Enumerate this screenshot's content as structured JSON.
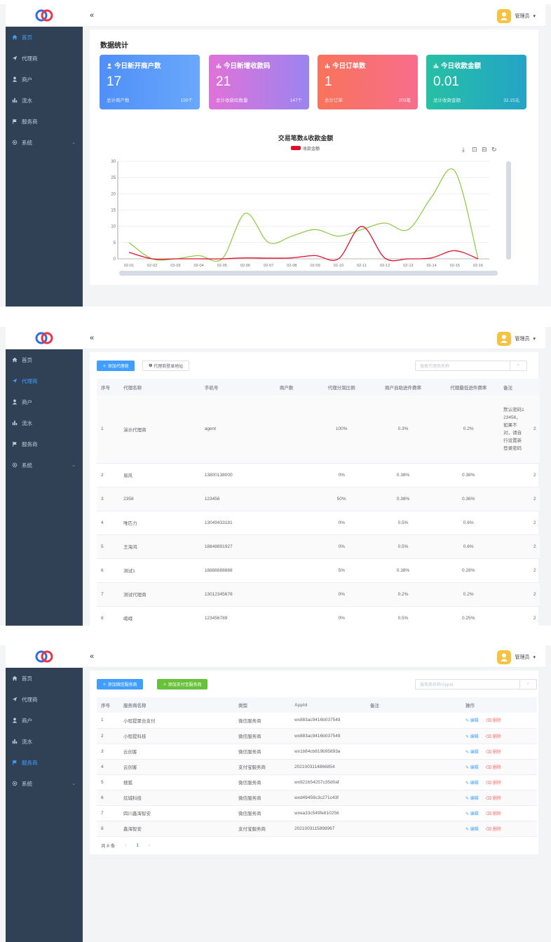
{
  "app": {
    "user_name": "管理员",
    "dropdown_icon": "caret-down-icon",
    "collapse_icon": "double-chevron-left-icon"
  },
  "panels": [
    {
      "sidebar": [
        {
          "icon": "home-icon",
          "label": "首页",
          "active": true
        },
        {
          "icon": "send-icon",
          "label": "代理商"
        },
        {
          "icon": "user-icon",
          "label": "商户"
        },
        {
          "icon": "bar-chart-icon",
          "label": "流水"
        },
        {
          "icon": "flag-icon",
          "label": "服务商"
        },
        {
          "icon": "gear-icon",
          "label": "系统",
          "expandable": true
        }
      ]
    },
    {
      "sidebar": [
        {
          "icon": "home-icon",
          "label": "首页"
        },
        {
          "icon": "send-icon",
          "label": "代理商",
          "active": true
        },
        {
          "icon": "user-icon",
          "label": "商户"
        },
        {
          "icon": "bar-chart-icon",
          "label": "流水"
        },
        {
          "icon": "flag-icon",
          "label": "服务商"
        },
        {
          "icon": "gear-icon",
          "label": "系统",
          "expandable": true
        }
      ]
    },
    {
      "sidebar": [
        {
          "icon": "home-icon",
          "label": "首页"
        },
        {
          "icon": "send-icon",
          "label": "代理商"
        },
        {
          "icon": "user-icon",
          "label": "商户"
        },
        {
          "icon": "bar-chart-icon",
          "label": "流水"
        },
        {
          "icon": "flag-icon",
          "label": "服务商",
          "active": true
        },
        {
          "icon": "gear-icon",
          "label": "系统",
          "expandable": true
        }
      ]
    }
  ],
  "dashboard": {
    "title": "数据统计",
    "cards": [
      {
        "icon": "user-icon",
        "title": "今日新开商户数",
        "value": "17",
        "footer_label": "总计商户数",
        "footer_value": "150个",
        "gradient": [
          "#4f8ff7",
          "#69a8fb"
        ]
      },
      {
        "icon": "bar-chart-icon",
        "title": "今日新增收款码",
        "value": "21",
        "footer_label": "总计收款码数量",
        "footer_value": "147个",
        "gradient": [
          "#e072d8",
          "#9b84f0"
        ]
      },
      {
        "icon": "bar-chart-icon",
        "title": "今日订单数",
        "value": "1",
        "footer_label": "总计订单",
        "footer_value": "203笔",
        "gradient": [
          "#f9735b",
          "#f76e8c"
        ]
      },
      {
        "icon": "bar-chart-icon",
        "title": "今日收款金额",
        "value": "0.01",
        "footer_label": "总计收款金额",
        "footer_value": "32.15元",
        "gradient": [
          "#27c0a4",
          "#23a3c8"
        ]
      }
    ],
    "toolbox_icons": [
      "download-icon",
      "zoom-icon",
      "zoom-reset-icon",
      "refresh-icon"
    ]
  },
  "chart_data": {
    "type": "line",
    "title": "交易笔数&收款金额",
    "legend": {
      "position": "top-center",
      "entries": [
        "收款金额"
      ]
    },
    "x": [
      "02-01",
      "02-02",
      "02-03",
      "02-04",
      "02-05",
      "02-06",
      "02-07",
      "02-08",
      "02-09",
      "02-10",
      "02-11",
      "02-12",
      "02-13",
      "02-14",
      "02-15",
      "02-16"
    ],
    "series": [
      {
        "values": [
          5,
          0,
          0,
          1,
          0,
          14,
          5,
          7,
          9,
          7,
          9,
          11,
          9,
          19,
          27,
          0
        ],
        "color": "#91cc4f"
      },
      {
        "name": "收款金额",
        "values": [
          2,
          0,
          0,
          0,
          0,
          0.3,
          0.2,
          0.3,
          1,
          0,
          10,
          0.2,
          0,
          0.3,
          2.5,
          0
        ],
        "color": "#e0102a"
      }
    ],
    "ylim": [
      0,
      30
    ],
    "yticks": [
      "0",
      "5",
      "10",
      "15",
      "20",
      "25",
      "30"
    ],
    "grid": true
  },
  "agents": {
    "add_button": "添加代理商",
    "login_button": "代理商登录地址",
    "search_placeholder": "搜索代理商名称",
    "columns": [
      "序号",
      "代理名称",
      "手机号",
      "商户数",
      "代理分润比例",
      "商户自助进件费率",
      "代理最低进件费率",
      "备注"
    ],
    "rows": [
      [
        "1",
        "演示代理商",
        "agent",
        "",
        "100%",
        "0.3%",
        "0.2%",
        "默认密码123456，如果不对，请自行设置新登录密码",
        "2"
      ],
      [
        "2",
        "易风",
        "13800138000",
        "",
        "0%",
        "0.38%",
        "0.38%",
        "",
        "2"
      ],
      [
        "3",
        "2358",
        "123456",
        "",
        "50%",
        "0.38%",
        "0.36%",
        "",
        "2"
      ],
      [
        "4",
        "唯匹力",
        "13049433181",
        "",
        "0%",
        "0.5%",
        "0.6%",
        "",
        "2"
      ],
      [
        "5",
        "王海鸿",
        "18848891927",
        "",
        "0%",
        "0.5%",
        "0.6%",
        "",
        "2"
      ],
      [
        "6",
        "测试1",
        "18888888888",
        "",
        "5%",
        "0.38%",
        "0.28%",
        "",
        "2"
      ],
      [
        "7",
        "测试代理商",
        "13012345678",
        "",
        "0%",
        "0.2%",
        "0.2%",
        "",
        "2"
      ],
      [
        "8",
        "峨峨",
        "123456789",
        "",
        "0%",
        "0.5%",
        "0.25%",
        "",
        "2"
      ]
    ]
  },
  "providers": {
    "add_wechat_button": "添加微信服务商",
    "add_alipay_button": "添加支付宝服务商",
    "search_placeholder": "服务商名称/AppId",
    "columns": [
      "序号",
      "服务商名称",
      "类型",
      "AppId",
      "备注",
      "操作"
    ],
    "edit_label": "编辑",
    "delete_label": "删除",
    "rows": [
      [
        "1",
        "小程提聚合支付",
        "微信服务商",
        "wx883ac9416b037549",
        ""
      ],
      [
        "2",
        "小程提科技",
        "微信服务商",
        "wx883ac9416b037549",
        ""
      ],
      [
        "3",
        "云创客",
        "微信服务商",
        "wx1b84cb819b95893a",
        ""
      ],
      [
        "4",
        "云创客",
        "支付宝服务商",
        "2021003114866854",
        ""
      ],
      [
        "5",
        "搜狐",
        "微信服务商",
        "wx921b54257c35d0af",
        ""
      ],
      [
        "6",
        "炫城科技",
        "微信服务商",
        "wxd49459c3c271c43f",
        ""
      ],
      [
        "7",
        "四川鑫海智安",
        "微信服务商",
        "wxea33c549fe810256",
        ""
      ],
      [
        "8",
        "鑫海智安",
        "支付宝服务商",
        "2021003115898967",
        ""
      ]
    ],
    "total_text": "共 8 条",
    "current_page": "1",
    "prev_icon": "chevron-left-icon",
    "next_icon": "chevron-right-icon"
  }
}
